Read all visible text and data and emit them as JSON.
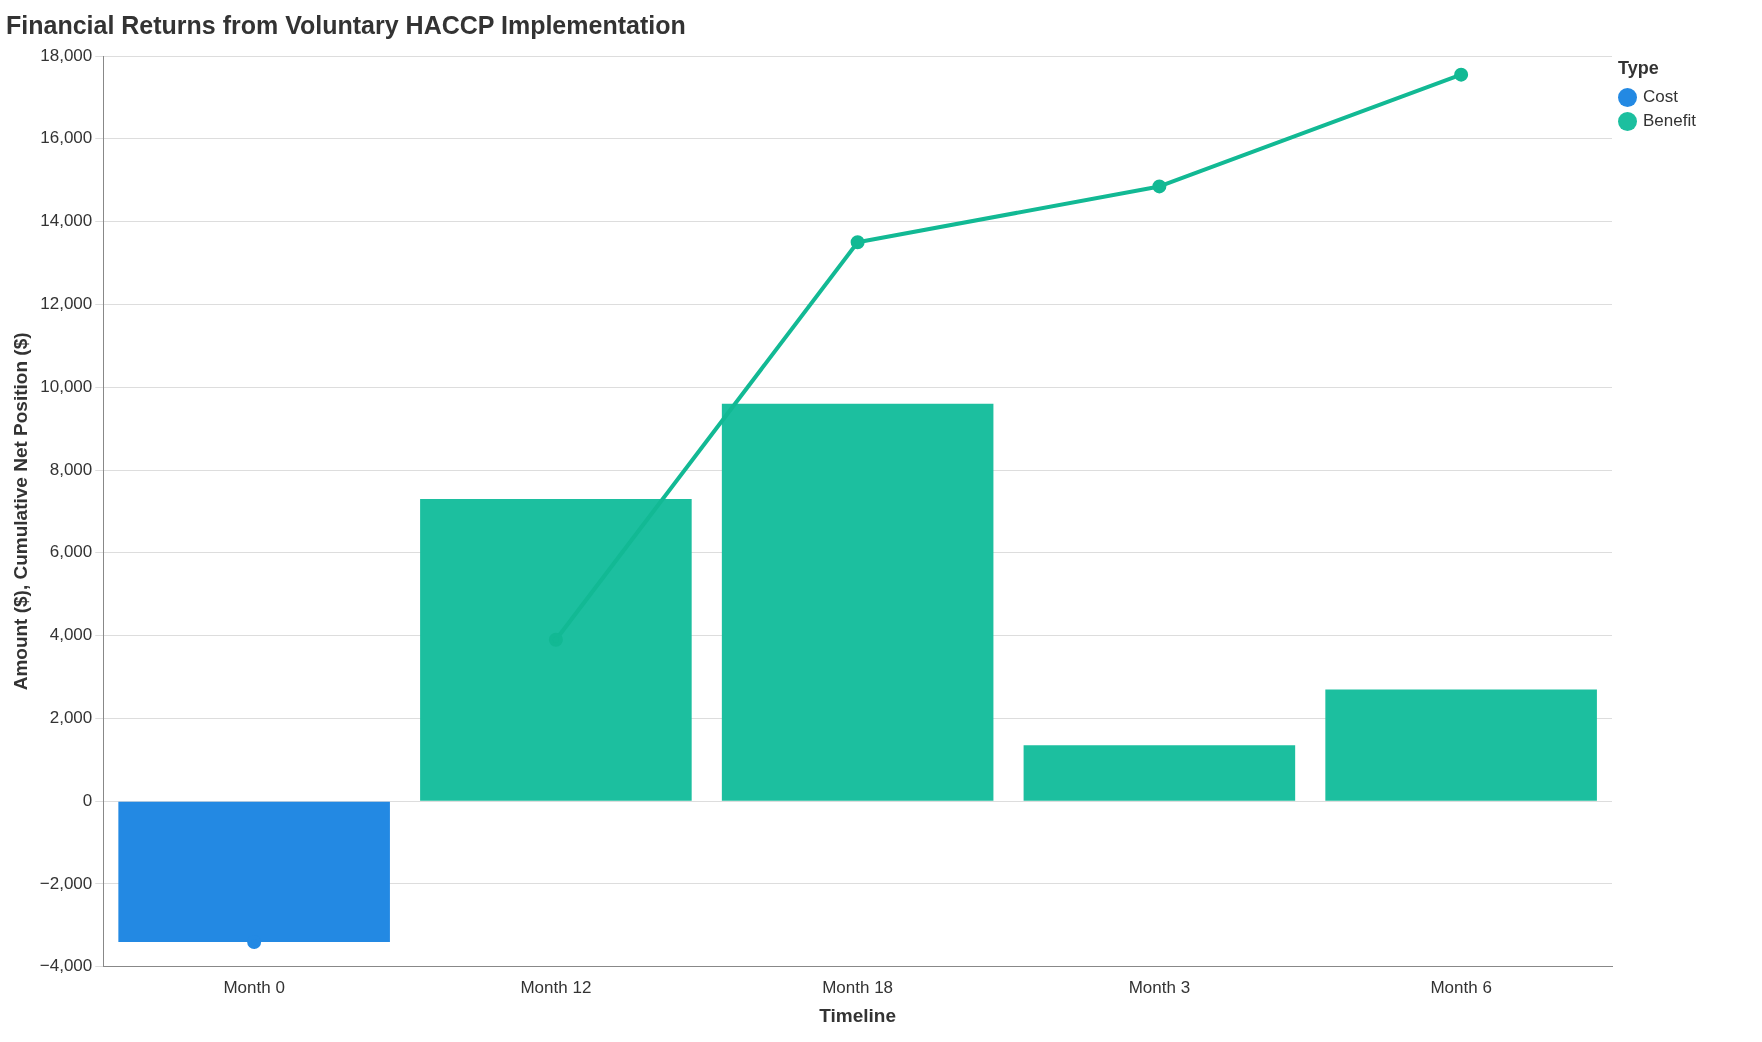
{
  "chart_data": {
    "type": "bar",
    "title": "Financial Returns from Voluntary HACCP Implementation",
    "xlabel": "Timeline",
    "ylabel": "Amount ($), Cumulative Net Position ($)",
    "legend_title": "Type",
    "categories": [
      "Month 0",
      "Month 12",
      "Month 18",
      "Month 3",
      "Month 6"
    ],
    "series": [
      {
        "name": "Cost",
        "color": "#2389e3",
        "values": [
          -3400,
          null,
          null,
          null,
          null
        ]
      },
      {
        "name": "Benefit",
        "color": "#1cbf9f",
        "values": [
          null,
          7300,
          9600,
          1350,
          2700
        ]
      },
      {
        "type": "line",
        "color": "#2389e3",
        "values": [
          -3400,
          null,
          null,
          null,
          null
        ]
      },
      {
        "type": "line",
        "color": "#12b994",
        "values": [
          null,
          3900,
          13500,
          14850,
          17550
        ]
      }
    ],
    "ylim": [
      -4000,
      18000
    ],
    "yticks": [
      {
        "value": -4000,
        "label": "−4,000"
      },
      {
        "value": -2000,
        "label": "−2,000"
      },
      {
        "value": 0,
        "label": "0"
      },
      {
        "value": 2000,
        "label": "2,000"
      },
      {
        "value": 4000,
        "label": "4,000"
      },
      {
        "value": 6000,
        "label": "6,000"
      },
      {
        "value": 8000,
        "label": "8,000"
      },
      {
        "value": 10000,
        "label": "10,000"
      },
      {
        "value": 12000,
        "label": "12,000"
      },
      {
        "value": 14000,
        "label": "14,000"
      },
      {
        "value": 16000,
        "label": "16,000"
      },
      {
        "value": 18000,
        "label": "18,000"
      }
    ],
    "grid": "y",
    "legend": "top right",
    "marker": "circle",
    "line_style": "solid"
  }
}
